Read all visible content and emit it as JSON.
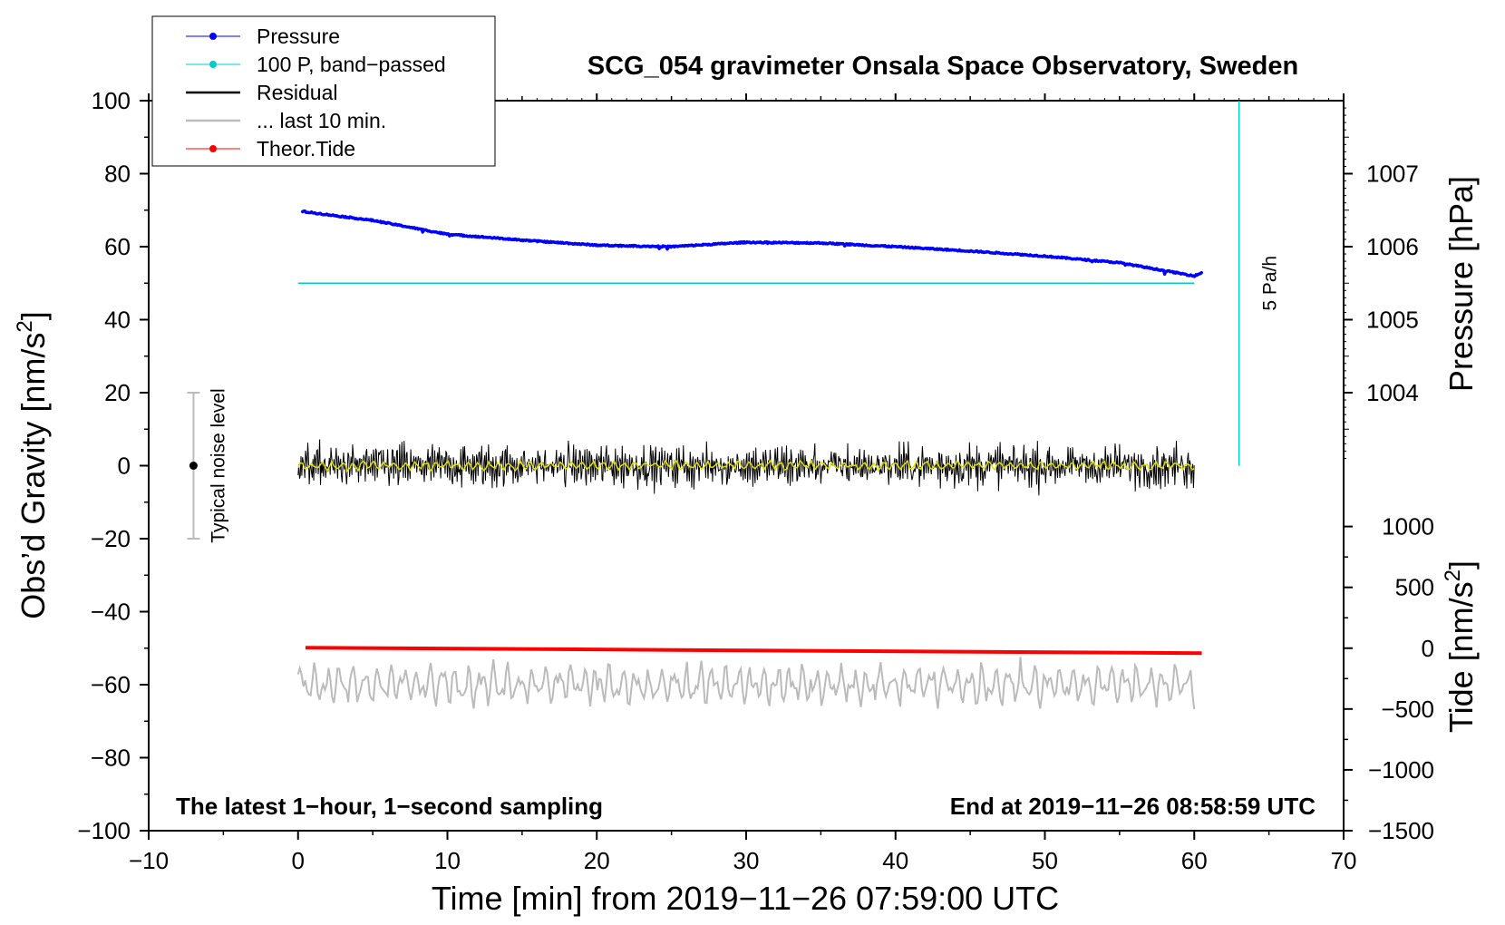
{
  "chart_data": {
    "type": "line",
    "title": "SCG_054 gravimeter Onsala Space Observatory, Sweden",
    "xlabel": "Time [min] from 2019−11−26 07:59:00 UTC",
    "xlim": [
      -10,
      70
    ],
    "xticks": [
      -10,
      0,
      10,
      20,
      30,
      40,
      50,
      60,
      70
    ],
    "xtick_labels": [
      "−10",
      "0",
      "10",
      "20",
      "30",
      "40",
      "50",
      "60",
      "70"
    ],
    "left_axis": {
      "label": "Obs’d Gravity [nm/s",
      "label_sup": "2",
      "label_end": "]",
      "ylim": [
        -100,
        100
      ],
      "ticks": [
        -100,
        -80,
        -60,
        -40,
        -20,
        0,
        20,
        40,
        60,
        80,
        100
      ],
      "tick_labels": [
        "−100",
        "−80",
        "−60",
        "−40",
        "−20",
        "0",
        "20",
        "40",
        "60",
        "80",
        "100"
      ]
    },
    "pressure_axis": {
      "label": "Pressure [hPa]",
      "ticks": [
        1004,
        1005,
        1006,
        1007
      ],
      "tick_labels": [
        "1004",
        "1005",
        "1006",
        "1007"
      ],
      "gravity_equivalent": {
        "1004": 20,
        "1005": 40,
        "1006": 60,
        "1007": 80
      }
    },
    "tide_axis": {
      "label": "Tide [nm/s",
      "label_sup": "2",
      "label_end": "]",
      "ticks": [
        -1500,
        -1000,
        -500,
        0,
        500,
        1000
      ],
      "tick_labels": [
        "−1500",
        "−1000",
        "−500",
        "0",
        "500",
        "1000"
      ],
      "gravity_equivalent": {
        "-1500": -100,
        "1000": -16.67
      }
    },
    "series": [
      {
        "name": "Pressure",
        "unit": "hPa",
        "color": "#0000ff",
        "x": [
          0,
          5,
          10,
          15,
          20,
          25,
          30,
          35,
          40,
          45,
          50,
          55,
          60,
          60.5
        ],
        "values": [
          1006.49,
          1006.36,
          1006.17,
          1006.09,
          1006.02,
          1006.0,
          1006.06,
          1006.05,
          1006.0,
          1005.94,
          1005.87,
          1005.78,
          1005.6,
          1005.64
        ]
      },
      {
        "name": "100 P, band−passed",
        "unit": "nm/s2",
        "color": "#00cccc",
        "x": [
          0,
          60
        ],
        "values": [
          50,
          50
        ]
      },
      {
        "name": "Residual",
        "unit": "nm/s2",
        "color": "#000000",
        "x": [
          0,
          60
        ],
        "values": [
          0,
          0
        ],
        "amplitude": 9
      },
      {
        "name": "... last 10 min.",
        "unit": "nm/s2",
        "color": "#bbbbbb",
        "x": [
          0,
          60
        ],
        "values": [
          -60,
          -60
        ],
        "amplitude": 7
      },
      {
        "name": "Theor.Tide",
        "unit": "nm/s2",
        "color": "#ff0000",
        "x": [
          0.5,
          60.5
        ],
        "values": [
          4,
          -41
        ]
      }
    ],
    "smoothed_residual_color": "#e0e000",
    "legend": {
      "placement": "top-left",
      "entries": [
        "Pressure",
        "100 P, band−passed",
        "Residual",
        "... last 10 min.",
        "Theor.Tide"
      ]
    },
    "annotations": {
      "noise_label": "Typical noise level",
      "noise_range": [
        -20,
        20
      ],
      "noise_x": -7,
      "rate_label": "5 Pa/h",
      "rate_x": 63,
      "rate_range": [
        0,
        100
      ],
      "bottom_left": "The latest 1−hour, 1−second sampling",
      "bottom_right": "End at 2019−11−26 08:58:59 UTC"
    }
  }
}
